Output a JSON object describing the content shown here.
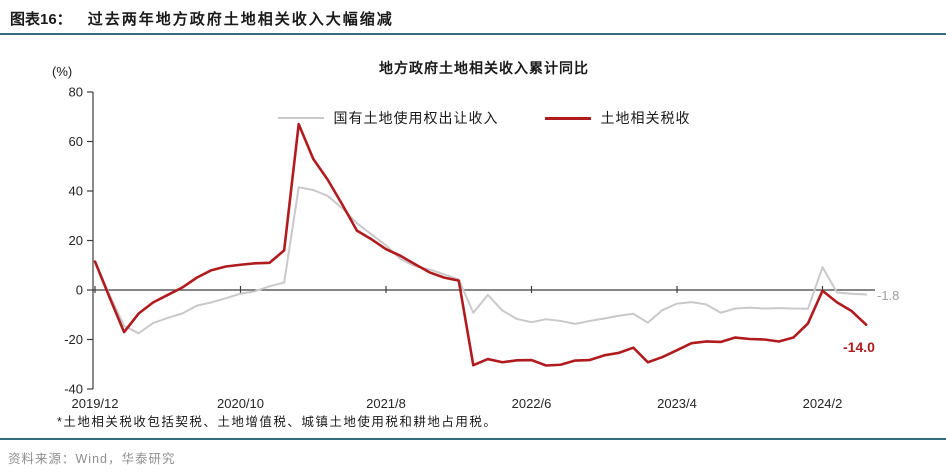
{
  "header": {
    "figure_label": "图表16：",
    "figure_title": "过去两年地方政府土地相关收入大幅缩减"
  },
  "footnote": "*土地相关税收包括契税、土地增值税、城镇土地使用税和耕地占用税。",
  "source": "资料来源：Wind，华泰研究",
  "colors": {
    "rule": "#336a80",
    "axis": "#3c3c3c",
    "gray_series": "#c9c9c9",
    "red_series": "#b01b1f",
    "gray_label": "#a0a0a0"
  },
  "chart_data": {
    "type": "line",
    "title": "地方政府土地相关收入累计同比",
    "ylabel": "(%)",
    "ylim": [
      -40,
      80
    ],
    "yticks": [
      80,
      60,
      40,
      20,
      0,
      -20,
      -40
    ],
    "grid": false,
    "legend_position": "top",
    "x_tick_labels": [
      "2019/12",
      "2020/10",
      "2021/8",
      "2022/6",
      "2023/4",
      "2024/2"
    ],
    "x_tick_indices": [
      0,
      10,
      20,
      30,
      40,
      50
    ],
    "categories": [
      "2019/12",
      "2020/1",
      "2020/2",
      "2020/3",
      "2020/4",
      "2020/5",
      "2020/6",
      "2020/7",
      "2020/8",
      "2020/9",
      "2020/10",
      "2020/11",
      "2020/12",
      "2021/1",
      "2021/2",
      "2021/3",
      "2021/4",
      "2021/5",
      "2021/6",
      "2021/7",
      "2021/8",
      "2021/9",
      "2021/10",
      "2021/11",
      "2021/12",
      "2022/1",
      "2022/2",
      "2022/3",
      "2022/4",
      "2022/5",
      "2022/6",
      "2022/7",
      "2022/8",
      "2022/9",
      "2022/10",
      "2022/11",
      "2022/12",
      "2023/1",
      "2023/2",
      "2023/3",
      "2023/4",
      "2023/5",
      "2023/6",
      "2023/7",
      "2023/8",
      "2023/9",
      "2023/10",
      "2023/11",
      "2023/12",
      "2024/1",
      "2024/2",
      "2024/3",
      "2024/4",
      "2024/5"
    ],
    "series": [
      {
        "name": "国有土地使用权出让收入",
        "color": "#c9c9c9",
        "width": 2,
        "end_label": "-1.8",
        "values": [
          11.5,
          -2,
          -14.5,
          -17.5,
          -13.3,
          -11.3,
          -9.5,
          -6.3,
          -5,
          -3.3,
          -1.5,
          -0.5,
          1.5,
          3,
          41.5,
          40.4,
          38,
          33,
          27,
          22.5,
          18,
          12.5,
          9.6,
          8.3,
          6.3,
          4.2,
          -9.2,
          -2,
          -8.3,
          -11.7,
          -13,
          -11.8,
          -12.5,
          -13.7,
          -12.5,
          -11.5,
          -10.4,
          -9.6,
          -13.2,
          -8.1,
          -5.5,
          -4.9,
          -5.8,
          -9.2,
          -7.5,
          -7.1,
          -7.5,
          -7.3,
          -7.5,
          -7.6,
          9.2,
          -1,
          -1.5,
          -1.8
        ]
      },
      {
        "name": "土地相关税收",
        "color": "#b01b1f",
        "width": 2.6,
        "end_label": "-14.0",
        "values": [
          11.5,
          -3,
          -17,
          -9.5,
          -5,
          -2,
          1,
          5,
          8,
          9.5,
          10.2,
          10.8,
          11,
          16,
          67,
          53,
          44.5,
          34.5,
          24,
          20.5,
          16.5,
          13.8,
          10.4,
          7.1,
          5,
          3.8,
          -30.4,
          -27.9,
          -29.2,
          -28.4,
          -28.3,
          -30.5,
          -30.2,
          -28.5,
          -28.3,
          -26.4,
          -25.4,
          -23.3,
          -29.2,
          -27.1,
          -24.3,
          -21.5,
          -20.8,
          -21,
          -19.2,
          -19.8,
          -20,
          -20.8,
          -19.2,
          -13.5,
          -0.3,
          -5,
          -8.5,
          -14.0
        ]
      }
    ]
  }
}
